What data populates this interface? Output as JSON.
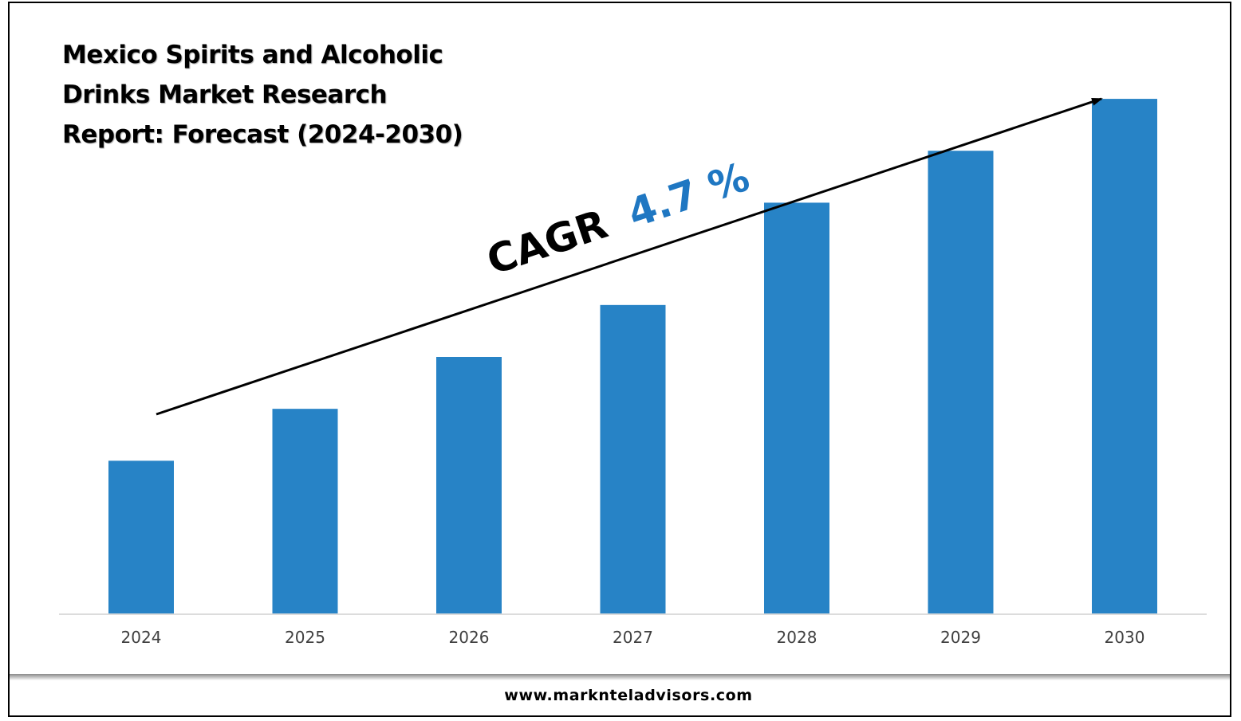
{
  "title_lines": [
    "Mexico Spirits and Alcoholic",
    "Drinks Market Research",
    "Report: Forecast (2024-2030)"
  ],
  "cagr": {
    "label": "CAGR",
    "value": "4.7 %"
  },
  "footer": {
    "url": "www.marknteladvisors.com"
  },
  "colors": {
    "bar": "#2783c6",
    "cagr_value": "#1f77c2",
    "axis_text": "#404040",
    "baseline": "#d0d0d0",
    "arrow": "#000000"
  },
  "chart_data": {
    "type": "bar",
    "title": "Mexico Spirits and Alcoholic Drinks Market Research Report: Forecast (2024-2030)",
    "categories": [
      "2024",
      "2025",
      "2026",
      "2027",
      "2028",
      "2029",
      "2030"
    ],
    "values": [
      1.0,
      1.34,
      1.68,
      2.02,
      2.69,
      3.03,
      3.37
    ],
    "ylim": [
      0,
      3.6
    ],
    "xlabel": "",
    "ylabel": "",
    "grid": false,
    "legend": "none",
    "annotation": "CAGR 4.7 % (upward trend arrow)"
  }
}
